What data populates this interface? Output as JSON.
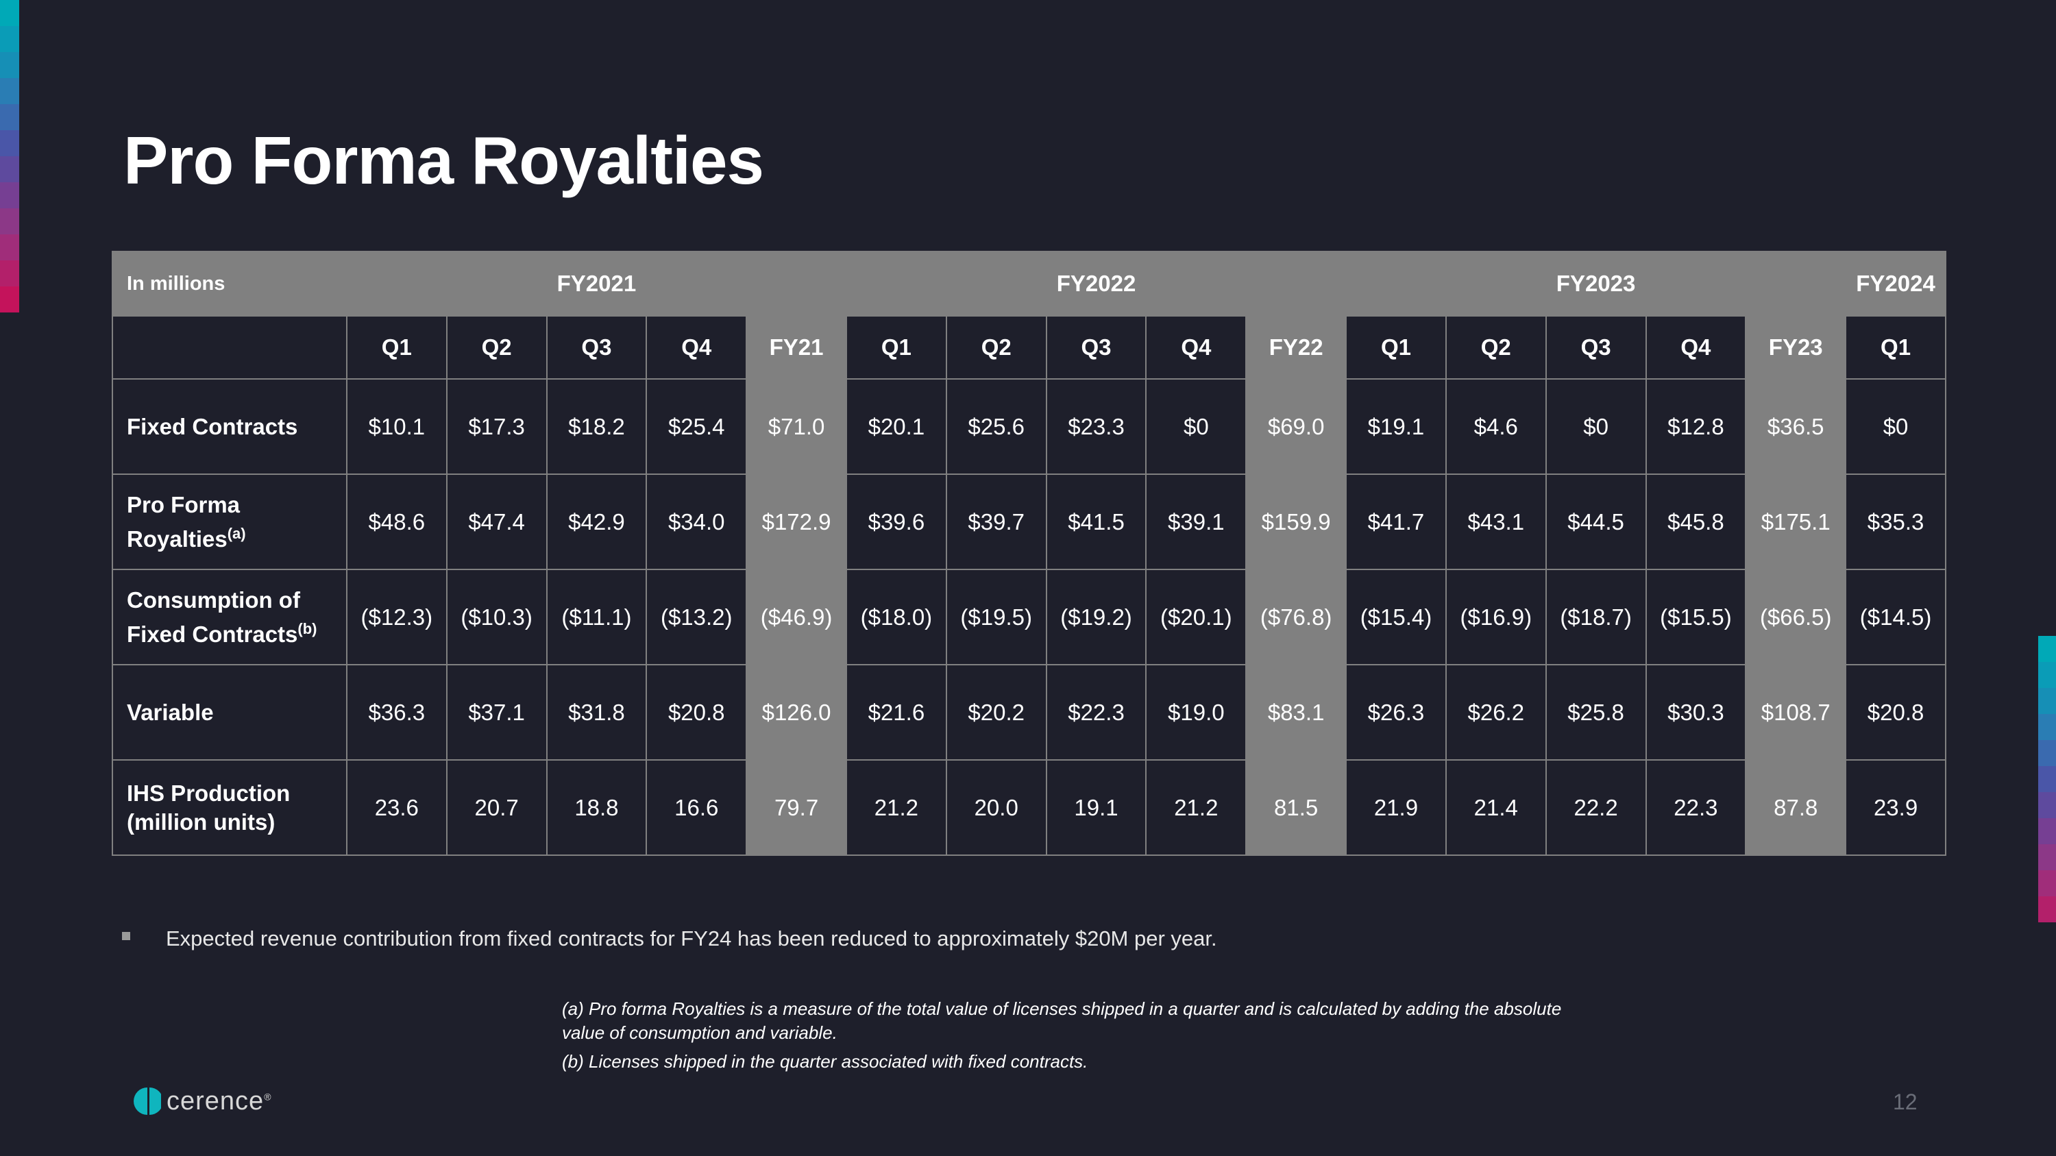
{
  "title": "Pro Forma Royalties",
  "colors": {
    "background": "#1e1f2b",
    "table_header": "#808080",
    "left_strip": [
      "#00a9b7",
      "#0a9cb7",
      "#168fb6",
      "#2a7db4",
      "#3a6aaf",
      "#4a56a8",
      "#5e4a9e",
      "#763f93",
      "#8c3887",
      "#a02d7a",
      "#b3206a",
      "#c4135b"
    ],
    "right_strip": [
      "#00a9b7",
      "#0a9cb7",
      "#168fb6",
      "#2a7db4",
      "#3a6aaf",
      "#4a56a8",
      "#5e4a9e",
      "#763f93",
      "#8c3887",
      "#a02d7a",
      "#b3206a"
    ]
  },
  "table": {
    "corner_label": "In millions",
    "year_groups": [
      "FY2021",
      "FY2022",
      "FY2023",
      "FY2024"
    ],
    "columns": [
      "Q1",
      "Q2",
      "Q3",
      "Q4",
      "FY21",
      "Q1",
      "Q2",
      "Q3",
      "Q4",
      "FY22",
      "Q1",
      "Q2",
      "Q3",
      "Q4",
      "FY23",
      "Q1"
    ],
    "rows": [
      {
        "label": "Fixed Contracts",
        "sup": "",
        "values": [
          "$10.1",
          "$17.3",
          "$18.2",
          "$25.4",
          "$71.0",
          "$20.1",
          "$25.6",
          "$23.3",
          "$0",
          "$69.0",
          "$19.1",
          "$4.6",
          "$0",
          "$12.8",
          "$36.5",
          "$0"
        ]
      },
      {
        "label": "Pro Forma Royalties",
        "sup": "(a)",
        "values": [
          "$48.6",
          "$47.4",
          "$42.9",
          "$34.0",
          "$172.9",
          "$39.6",
          "$39.7",
          "$41.5",
          "$39.1",
          "$159.9",
          "$41.7",
          "$43.1",
          "$44.5",
          "$45.8",
          "$175.1",
          "$35.3"
        ]
      },
      {
        "label": "Consumption of Fixed Contracts",
        "sup": "(b)",
        "values": [
          "($12.3)",
          "($10.3)",
          "($11.1)",
          "($13.2)",
          "($46.9)",
          "($18.0)",
          "($19.5)",
          "($19.2)",
          "($20.1)",
          "($76.8)",
          "($15.4)",
          "($16.9)",
          "($18.7)",
          "($15.5)",
          "($66.5)",
          "($14.5)"
        ]
      },
      {
        "label": "Variable",
        "sup": "",
        "values": [
          "$36.3",
          "$37.1",
          "$31.8",
          "$20.8",
          "$126.0",
          "$21.6",
          "$20.2",
          "$22.3",
          "$19.0",
          "$83.1",
          "$26.3",
          "$26.2",
          "$25.8",
          "$30.3",
          "$108.7",
          "$20.8"
        ]
      },
      {
        "label": "IHS Production (million units)",
        "sup": "",
        "values": [
          "23.6",
          "20.7",
          "18.8",
          "16.6",
          "79.7",
          "21.2",
          "20.0",
          "19.1",
          "21.2",
          "81.5",
          "21.9",
          "21.4",
          "22.2",
          "22.3",
          "87.8",
          "23.9"
        ]
      }
    ]
  },
  "bullet": "Expected revenue contribution from fixed contracts for FY24 has been reduced to approximately $20M per year.",
  "footnotes": [
    "(a) Pro forma Royalties is a measure of the total value of licenses shipped in a quarter and is calculated by adding the absolute value of consumption and variable.",
    "(b) Licenses shipped in the quarter associated with fixed contracts."
  ],
  "logo": {
    "text": "cerence",
    "icon": "cerence-logo-icon"
  },
  "page_number": "12"
}
